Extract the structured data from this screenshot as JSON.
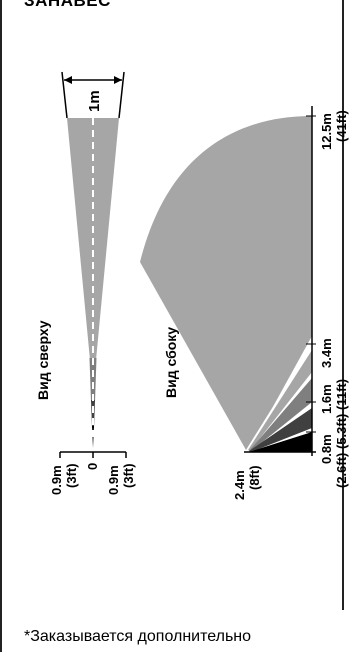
{
  "heading": "ЗАНАВЕС",
  "footnote": "*Заказывается дополнительно",
  "top_view": {
    "title": "Вид сверху",
    "width_label": "1m",
    "axis_labels": [
      {
        "m": "0.9m",
        "ft": "(3ft)"
      },
      {
        "m": "0",
        "ft": ""
      },
      {
        "m": "0.9m",
        "ft": "(3ft)"
      }
    ]
  },
  "side_view": {
    "title": "Вид сбоку",
    "height_m": "2.4m",
    "height_ft": "(8ft)",
    "distance_labels_m": [
      "0.8m",
      "1.6m",
      "3.4m"
    ],
    "distance_labels_ft": "(2.6ft) (5.3ft) (11ft)",
    "max_m": "12.5m",
    "max_ft": "(41ft)"
  },
  "colors": {
    "light_gray": "#a6a6a6",
    "mid_gray": "#7f7f7f",
    "dark_gray": "#404040",
    "black": "#000000"
  }
}
